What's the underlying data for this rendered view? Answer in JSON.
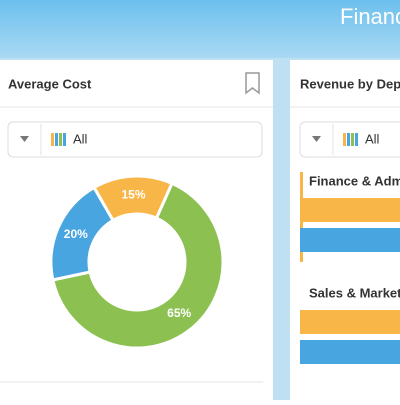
{
  "header": {
    "title": "Financ"
  },
  "left_card": {
    "title": "Average Cost",
    "filter": "All"
  },
  "right_card": {
    "title": "Revenue by Depa",
    "filter": "All",
    "groups": [
      "Finance & Admir",
      "Sales & Marketin"
    ]
  },
  "chart_data": {
    "type": "pie",
    "donut": true,
    "values": [
      15,
      65,
      20
    ],
    "value_labels": [
      "15%",
      "65%",
      "20%"
    ],
    "colors": [
      "#f9b648",
      "#8cc152",
      "#48a5e0"
    ]
  }
}
